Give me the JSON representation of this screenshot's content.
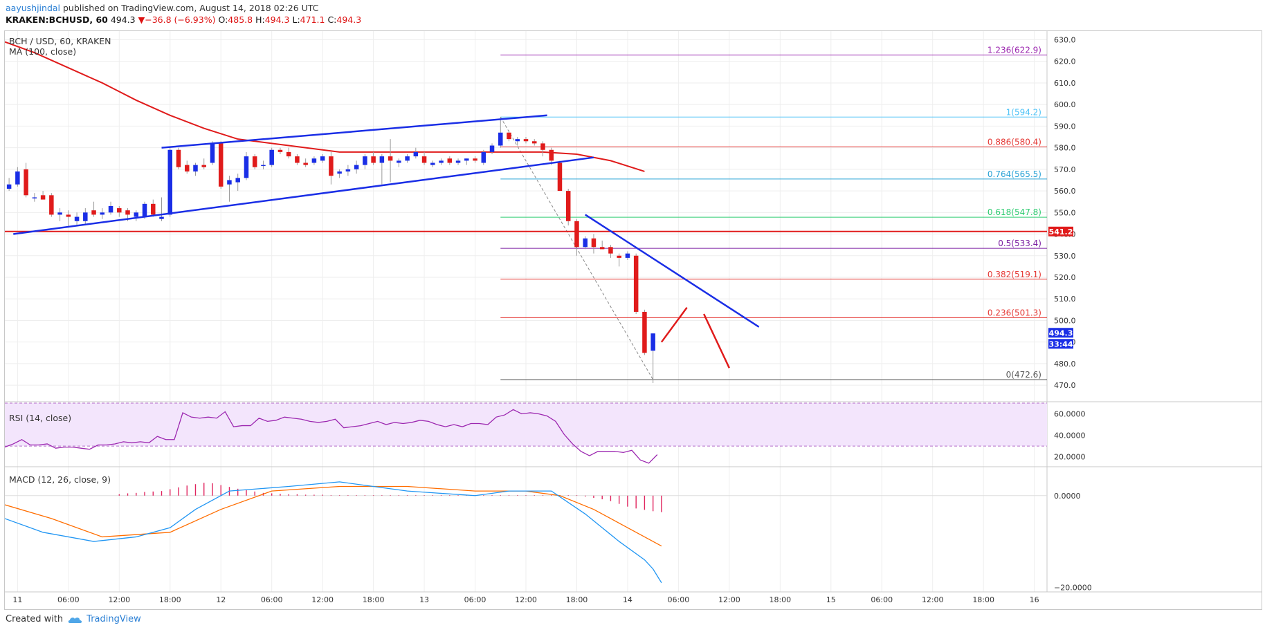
{
  "header": {
    "user": "aayushjindal",
    "published": " published on TradingView.com, August 14, 2018 02:26 UTC",
    "symbol": "KRAKEN:BCHUSD, 60",
    "last": "494.3",
    "change_arrow": "▼",
    "change": "−36.8 (−6.93%)",
    "o_label": "O:",
    "o": "485.8",
    "h_label": "H:",
    "h": "494.3",
    "l_label": "L:",
    "l": "471.1",
    "c_label": "C:",
    "c": "494.3"
  },
  "chart_title": "BCH / USD, 60, KRAKEN",
  "ma_label": "MA (100, close)",
  "rsi_label": "RSI (14, close)",
  "macd_label": "MACD (12, 26, close, 9)",
  "footer": {
    "created_with": "Created with",
    "brand": "TradingView"
  },
  "colors": {
    "bull": "#1a2ee6",
    "bear": "#e01b1b",
    "ma": "#e01b1b",
    "trend": "#1a2ee6",
    "rsi": "#9c27b0",
    "rsi_band": "#f3e5fc",
    "macd": "#2196f3",
    "signal": "#ff6d00",
    "hist": "#e0245e"
  },
  "chart_data": {
    "type": "candlestick",
    "price_axis": {
      "ticks": [
        470,
        480,
        490,
        500,
        510,
        520,
        530,
        540,
        550,
        560,
        570,
        580,
        590,
        600,
        610,
        620,
        630
      ],
      "tick_labels": [
        "470.0",
        "480.0",
        "490.0",
        "500.0",
        "510.0",
        "520.0",
        "530.0",
        "540.0",
        "550.0",
        "560.0",
        "570.0",
        "580.0",
        "590.0",
        "600.0",
        "610.0",
        "620.0",
        "630.0"
      ],
      "range": [
        463,
        634
      ]
    },
    "time_axis": {
      "hours_range": [
        -1.5,
        121.5
      ],
      "ticks": [
        {
          "hour": 0,
          "label": "11"
        },
        {
          "hour": 6,
          "label": "06:00"
        },
        {
          "hour": 12,
          "label": "12:00"
        },
        {
          "hour": 18,
          "label": "18:00"
        },
        {
          "hour": 24,
          "label": "12"
        },
        {
          "hour": 30,
          "label": "06:00"
        },
        {
          "hour": 36,
          "label": "12:00"
        },
        {
          "hour": 42,
          "label": "18:00"
        },
        {
          "hour": 48,
          "label": "13"
        },
        {
          "hour": 54,
          "label": "06:00"
        },
        {
          "hour": 60,
          "label": "12:00"
        },
        {
          "hour": 66,
          "label": "18:00"
        },
        {
          "hour": 72,
          "label": "14"
        },
        {
          "hour": 78,
          "label": "06:00"
        },
        {
          "hour": 84,
          "label": "12:00"
        },
        {
          "hour": 90,
          "label": "18:00"
        },
        {
          "hour": 96,
          "label": "15"
        },
        {
          "hour": 102,
          "label": "06:00"
        },
        {
          "hour": 108,
          "label": "12:00"
        },
        {
          "hour": 114,
          "label": "18:00"
        },
        {
          "hour": 120,
          "label": "16"
        }
      ]
    },
    "candles": [
      {
        "t": -1,
        "o": 561,
        "h": 566,
        "l": 560,
        "c": 563
      },
      {
        "t": 0,
        "o": 563,
        "h": 571,
        "l": 562,
        "c": 569
      },
      {
        "t": 1,
        "o": 570,
        "h": 573,
        "l": 557,
        "c": 558
      },
      {
        "t": 2,
        "o": 557,
        "h": 559,
        "l": 555,
        "c": 557
      },
      {
        "t": 3,
        "o": 558,
        "h": 560,
        "l": 556,
        "c": 556
      },
      {
        "t": 4,
        "o": 558,
        "h": 559,
        "l": 548,
        "c": 549
      },
      {
        "t": 5,
        "o": 549,
        "h": 552,
        "l": 546,
        "c": 550
      },
      {
        "t": 6,
        "o": 549,
        "h": 551,
        "l": 543,
        "c": 548
      },
      {
        "t": 7,
        "o": 546,
        "h": 550,
        "l": 544,
        "c": 548
      },
      {
        "t": 8,
        "o": 546,
        "h": 552,
        "l": 544,
        "c": 550
      },
      {
        "t": 9,
        "o": 551,
        "h": 555,
        "l": 548,
        "c": 549
      },
      {
        "t": 10,
        "o": 549,
        "h": 552,
        "l": 547,
        "c": 550
      },
      {
        "t": 11,
        "o": 550,
        "h": 555,
        "l": 549,
        "c": 553
      },
      {
        "t": 12,
        "o": 552,
        "h": 553,
        "l": 548,
        "c": 550
      },
      {
        "t": 13,
        "o": 551,
        "h": 552,
        "l": 546,
        "c": 549
      },
      {
        "t": 14,
        "o": 548,
        "h": 551,
        "l": 546,
        "c": 550
      },
      {
        "t": 15,
        "o": 548,
        "h": 555,
        "l": 547,
        "c": 554
      },
      {
        "t": 16,
        "o": 554,
        "h": 556,
        "l": 548,
        "c": 549
      },
      {
        "t": 17,
        "o": 547,
        "h": 557,
        "l": 546,
        "c": 548
      },
      {
        "t": 18,
        "o": 549,
        "h": 580,
        "l": 548,
        "c": 579
      },
      {
        "t": 19,
        "o": 579,
        "h": 580,
        "l": 570,
        "c": 571
      },
      {
        "t": 20,
        "o": 572,
        "h": 574,
        "l": 568,
        "c": 569
      },
      {
        "t": 21,
        "o": 569,
        "h": 573,
        "l": 567,
        "c": 572
      },
      {
        "t": 22,
        "o": 572,
        "h": 575,
        "l": 570,
        "c": 571
      },
      {
        "t": 23,
        "o": 573,
        "h": 583,
        "l": 572,
        "c": 582
      },
      {
        "t": 24,
        "o": 582,
        "h": 583,
        "l": 561,
        "c": 562
      },
      {
        "t": 25,
        "o": 563,
        "h": 567,
        "l": 555,
        "c": 565
      },
      {
        "t": 26,
        "o": 564,
        "h": 568,
        "l": 560,
        "c": 566
      },
      {
        "t": 27,
        "o": 566,
        "h": 578,
        "l": 565,
        "c": 576
      },
      {
        "t": 28,
        "o": 576,
        "h": 577,
        "l": 570,
        "c": 571
      },
      {
        "t": 29,
        "o": 572,
        "h": 574,
        "l": 570,
        "c": 572
      },
      {
        "t": 30,
        "o": 572,
        "h": 580,
        "l": 571,
        "c": 579
      },
      {
        "t": 31,
        "o": 579,
        "h": 580,
        "l": 577,
        "c": 578
      },
      {
        "t": 32,
        "o": 578,
        "h": 580,
        "l": 575,
        "c": 576
      },
      {
        "t": 33,
        "o": 576,
        "h": 577,
        "l": 572,
        "c": 573
      },
      {
        "t": 34,
        "o": 573,
        "h": 575,
        "l": 571,
        "c": 572
      },
      {
        "t": 35,
        "o": 573,
        "h": 576,
        "l": 572,
        "c": 575
      },
      {
        "t": 36,
        "o": 574,
        "h": 577,
        "l": 573,
        "c": 576
      },
      {
        "t": 37,
        "o": 576,
        "h": 578,
        "l": 563,
        "c": 567
      },
      {
        "t": 38,
        "o": 568,
        "h": 570,
        "l": 566,
        "c": 569
      },
      {
        "t": 39,
        "o": 569,
        "h": 572,
        "l": 567,
        "c": 570
      },
      {
        "t": 40,
        "o": 570,
        "h": 574,
        "l": 568,
        "c": 572
      },
      {
        "t": 41,
        "o": 572,
        "h": 577,
        "l": 570,
        "c": 576
      },
      {
        "t": 42,
        "o": 576,
        "h": 578,
        "l": 572,
        "c": 573
      },
      {
        "t": 43,
        "o": 573,
        "h": 577,
        "l": 563,
        "c": 576
      },
      {
        "t": 44,
        "o": 576,
        "h": 584,
        "l": 564,
        "c": 574
      },
      {
        "t": 45,
        "o": 573,
        "h": 575,
        "l": 571,
        "c": 574
      },
      {
        "t": 46,
        "o": 574,
        "h": 577,
        "l": 573,
        "c": 576
      },
      {
        "t": 47,
        "o": 576,
        "h": 580,
        "l": 575,
        "c": 578
      },
      {
        "t": 48,
        "o": 576,
        "h": 578,
        "l": 572,
        "c": 573
      },
      {
        "t": 49,
        "o": 572,
        "h": 574,
        "l": 571,
        "c": 573
      },
      {
        "t": 50,
        "o": 573,
        "h": 575,
        "l": 572,
        "c": 574
      },
      {
        "t": 51,
        "o": 575,
        "h": 576,
        "l": 572,
        "c": 573
      },
      {
        "t": 52,
        "o": 573,
        "h": 575,
        "l": 572,
        "c": 574
      },
      {
        "t": 53,
        "o": 574,
        "h": 575,
        "l": 572,
        "c": 575
      },
      {
        "t": 54,
        "o": 575,
        "h": 576,
        "l": 573,
        "c": 574
      },
      {
        "t": 55,
        "o": 573,
        "h": 579,
        "l": 572,
        "c": 578
      },
      {
        "t": 56,
        "o": 578,
        "h": 582,
        "l": 577,
        "c": 581
      },
      {
        "t": 57,
        "o": 581,
        "h": 594,
        "l": 580,
        "c": 587
      },
      {
        "t": 58,
        "o": 587,
        "h": 588,
        "l": 583,
        "c": 584
      },
      {
        "t": 59,
        "o": 583,
        "h": 585,
        "l": 581,
        "c": 584
      },
      {
        "t": 60,
        "o": 584,
        "h": 585,
        "l": 582,
        "c": 583
      },
      {
        "t": 61,
        "o": 583,
        "h": 584,
        "l": 581,
        "c": 582
      },
      {
        "t": 62,
        "o": 582,
        "h": 583,
        "l": 576,
        "c": 579
      },
      {
        "t": 63,
        "o": 579,
        "h": 580,
        "l": 572,
        "c": 574
      },
      {
        "t": 64,
        "o": 573,
        "h": 574,
        "l": 560,
        "c": 560
      },
      {
        "t": 65,
        "o": 560,
        "h": 561,
        "l": 544,
        "c": 546
      },
      {
        "t": 66,
        "o": 546,
        "h": 547,
        "l": 530,
        "c": 534
      },
      {
        "t": 67,
        "o": 534,
        "h": 539,
        "l": 533,
        "c": 538
      },
      {
        "t": 68,
        "o": 538,
        "h": 540,
        "l": 531,
        "c": 534
      },
      {
        "t": 69,
        "o": 534,
        "h": 537,
        "l": 533,
        "c": 533
      },
      {
        "t": 70,
        "o": 534,
        "h": 535,
        "l": 529,
        "c": 531
      },
      {
        "t": 71,
        "o": 530,
        "h": 531,
        "l": 525,
        "c": 529
      },
      {
        "t": 72,
        "o": 529,
        "h": 532,
        "l": 528,
        "c": 531
      },
      {
        "t": 73,
        "o": 530,
        "h": 531,
        "l": 503,
        "c": 504
      },
      {
        "t": 74,
        "o": 504,
        "h": 505,
        "l": 484,
        "c": 485
      },
      {
        "t": 75,
        "o": 486,
        "h": 494,
        "l": 471,
        "c": 494
      }
    ],
    "ma100": [
      {
        "t": -1.5,
        "v": 629
      },
      {
        "t": 2,
        "v": 624
      },
      {
        "t": 6,
        "v": 617
      },
      {
        "t": 10,
        "v": 610
      },
      {
        "t": 14,
        "v": 602
      },
      {
        "t": 18,
        "v": 595
      },
      {
        "t": 22,
        "v": 589
      },
      {
        "t": 26,
        "v": 584
      },
      {
        "t": 30,
        "v": 582
      },
      {
        "t": 34,
        "v": 580
      },
      {
        "t": 38,
        "v": 578
      },
      {
        "t": 42,
        "v": 578
      },
      {
        "t": 46,
        "v": 578
      },
      {
        "t": 50,
        "v": 578
      },
      {
        "t": 54,
        "v": 578
      },
      {
        "t": 58,
        "v": 578
      },
      {
        "t": 62,
        "v": 578
      },
      {
        "t": 66,
        "v": 577
      },
      {
        "t": 70,
        "v": 574
      },
      {
        "t": 74,
        "v": 569
      }
    ],
    "fib_levels": [
      {
        "ratio": "1.236",
        "price": 622.9,
        "label": "1.236(622.9)",
        "color": "#9c27b0"
      },
      {
        "ratio": "1",
        "price": 594.2,
        "label": "1(594.2)",
        "color": "#4fc3f7"
      },
      {
        "ratio": "0.886",
        "price": 580.4,
        "label": "0.886(580.4)",
        "color": "#e53935"
      },
      {
        "ratio": "0.764",
        "price": 565.5,
        "label": "0.764(565.5)",
        "color": "#29a3d6"
      },
      {
        "ratio": "0.618",
        "price": 547.8,
        "label": "0.618(547.8)",
        "color": "#2ecc71"
      },
      {
        "ratio": "0.5",
        "price": 533.4,
        "label": "0.5(533.4)",
        "color": "#7b1fa2"
      },
      {
        "ratio": "0.382",
        "price": 519.1,
        "label": "0.382(519.1)",
        "color": "#e53935"
      },
      {
        "ratio": "0.236",
        "price": 501.3,
        "label": "0.236(501.3)",
        "color": "#e53935"
      },
      {
        "ratio": "0",
        "price": 472.6,
        "label": "0(472.6)",
        "color": "#555555"
      }
    ],
    "fib_start_hour": 57,
    "horizontal_level": {
      "price": 541.2,
      "label": "541.2"
    },
    "last_price_label": "494.3",
    "countdown_label": "33:44",
    "trendlines": [
      {
        "from": [
          -0.5,
          540
        ],
        "to": [
          68,
          575.5
        ]
      },
      {
        "from": [
          17,
          580
        ],
        "to": [
          62.5,
          595
        ]
      },
      {
        "from": [
          67,
          549
        ],
        "to": [
          87.5,
          497
        ]
      }
    ],
    "arrows": [
      {
        "from": [
          76,
          490
        ],
        "to": [
          79,
          506
        ]
      },
      {
        "from": [
          81,
          503
        ],
        "to": [
          84,
          478
        ]
      }
    ],
    "rsi": {
      "ticks": [
        20,
        40,
        60
      ],
      "tick_labels": [
        "20.0000",
        "40.0000",
        "60.0000"
      ],
      "range": [
        12,
        70
      ],
      "band": [
        30,
        70
      ],
      "values": [
        29,
        32,
        36,
        31,
        31,
        32,
        28,
        29,
        29,
        28,
        27,
        31,
        31,
        32,
        34,
        33,
        34,
        33,
        39,
        36,
        36,
        61,
        57,
        56,
        57,
        56,
        62,
        48,
        49,
        49,
        56,
        53,
        54,
        57,
        56,
        55,
        53,
        52,
        53,
        55,
        47,
        48,
        49,
        51,
        53,
        50,
        52,
        51,
        52,
        54,
        53,
        50,
        48,
        50,
        48,
        51,
        51,
        50,
        57,
        59,
        64,
        60,
        61,
        60,
        58,
        53,
        41,
        32,
        25,
        21,
        25,
        25,
        25,
        24,
        26,
        17,
        14,
        22
      ]
    },
    "macd": {
      "ticks": [
        0,
        -20
      ],
      "tick_labels": [
        "0.0000",
        "−20.0000"
      ],
      "range": [
        -21,
        6
      ],
      "macd_line": [
        {
          "t": -1.5,
          "v": -5
        },
        {
          "t": 3,
          "v": -8
        },
        {
          "t": 9,
          "v": -10
        },
        {
          "t": 14,
          "v": -9
        },
        {
          "t": 18,
          "v": -7
        },
        {
          "t": 21,
          "v": -3
        },
        {
          "t": 25,
          "v": 1
        },
        {
          "t": 32,
          "v": 2
        },
        {
          "t": 38,
          "v": 3
        },
        {
          "t": 46,
          "v": 1
        },
        {
          "t": 54,
          "v": 0
        },
        {
          "t": 58,
          "v": 1
        },
        {
          "t": 63,
          "v": 1
        },
        {
          "t": 67,
          "v": -4
        },
        {
          "t": 71,
          "v": -10
        },
        {
          "t": 74,
          "v": -14
        },
        {
          "t": 75,
          "v": -16
        },
        {
          "t": 76,
          "v": -19
        }
      ],
      "signal_line": [
        {
          "t": -1.5,
          "v": -2
        },
        {
          "t": 4,
          "v": -5
        },
        {
          "t": 10,
          "v": -9
        },
        {
          "t": 18,
          "v": -8
        },
        {
          "t": 24,
          "v": -3
        },
        {
          "t": 30,
          "v": 1
        },
        {
          "t": 38,
          "v": 2
        },
        {
          "t": 46,
          "v": 2
        },
        {
          "t": 54,
          "v": 1
        },
        {
          "t": 60,
          "v": 1
        },
        {
          "t": 64,
          "v": 0
        },
        {
          "t": 68,
          "v": -3
        },
        {
          "t": 72,
          "v": -7
        },
        {
          "t": 76,
          "v": -11
        }
      ],
      "hist_start": 12,
      "hist": [
        0.3,
        0.5,
        0.6,
        0.8,
        0.9,
        1.0,
        1.4,
        1.8,
        2.2,
        2.5,
        2.8,
        2.7,
        2.3,
        1.9,
        1.5,
        1.2,
        0.9,
        0.6,
        0.5,
        0.4,
        0.3,
        0.3,
        0.2,
        0.2,
        0.2,
        0.1,
        0.1,
        0.1,
        0.1,
        0.1,
        0.1,
        0.1,
        0.1,
        0.1,
        0.1,
        0.1,
        0.1,
        0.1,
        0.1,
        0.1,
        0.1,
        0.1,
        0.1,
        0.1,
        0.1,
        0.1,
        0.1,
        0.1,
        0.1,
        0.1,
        0.1,
        0.1,
        0.1,
        0.1,
        0.1,
        -0.2,
        -0.5,
        -0.8,
        -1.2,
        -1.8,
        -2.4,
        -2.8,
        -3.1,
        -3.4,
        -3.6
      ]
    }
  }
}
